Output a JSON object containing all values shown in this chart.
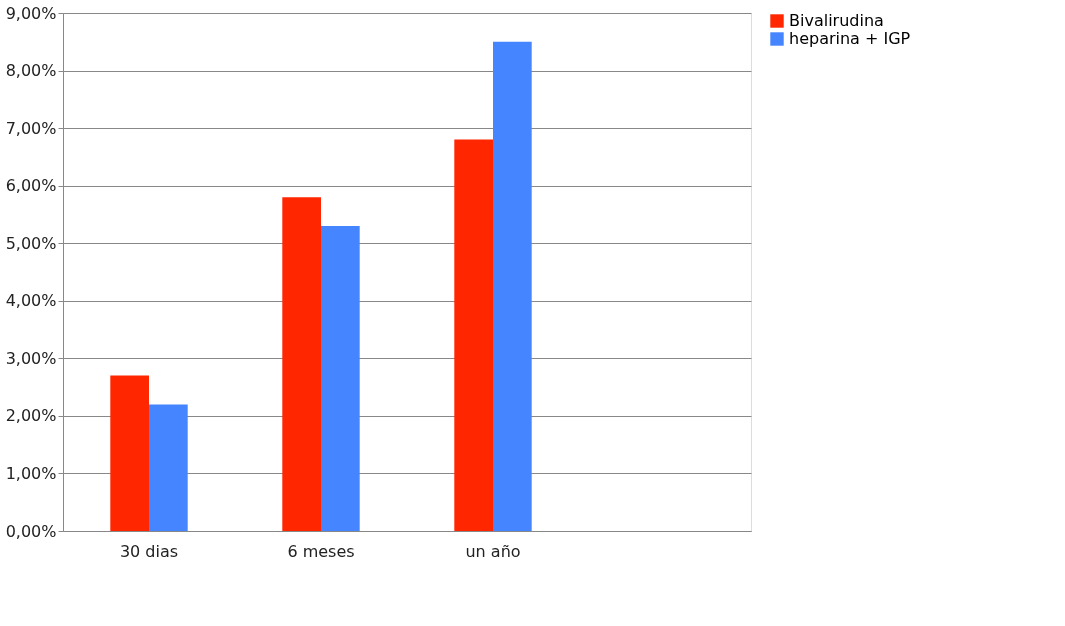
{
  "chart_data": {
    "type": "bar",
    "categories": [
      "30 dias",
      "6 meses",
      "un año",
      null
    ],
    "series": [
      {
        "name": "Bivalirudina",
        "color": "#ff2600",
        "values": [
          2.7,
          5.8,
          6.8,
          null
        ]
      },
      {
        "name": "heparina + IGP",
        "color": "#4585ff",
        "values": [
          2.2,
          5.3,
          8.5,
          null
        ]
      }
    ],
    "ylim": [
      0,
      9
    ],
    "yticks": [
      {
        "value": 0,
        "label": "0,00%"
      },
      {
        "value": 1,
        "label": "1,00%"
      },
      {
        "value": 2,
        "label": "2,00%"
      },
      {
        "value": 3,
        "label": "3,00%"
      },
      {
        "value": 4,
        "label": "4,00%"
      },
      {
        "value": 5,
        "label": "5,00%"
      },
      {
        "value": 6,
        "label": "6,00%"
      },
      {
        "value": 7,
        "label": "7,00%"
      },
      {
        "value": 8,
        "label": "8,00%"
      },
      {
        "value": 9,
        "label": "9,00%"
      }
    ],
    "grid": "y",
    "legend": "right"
  }
}
